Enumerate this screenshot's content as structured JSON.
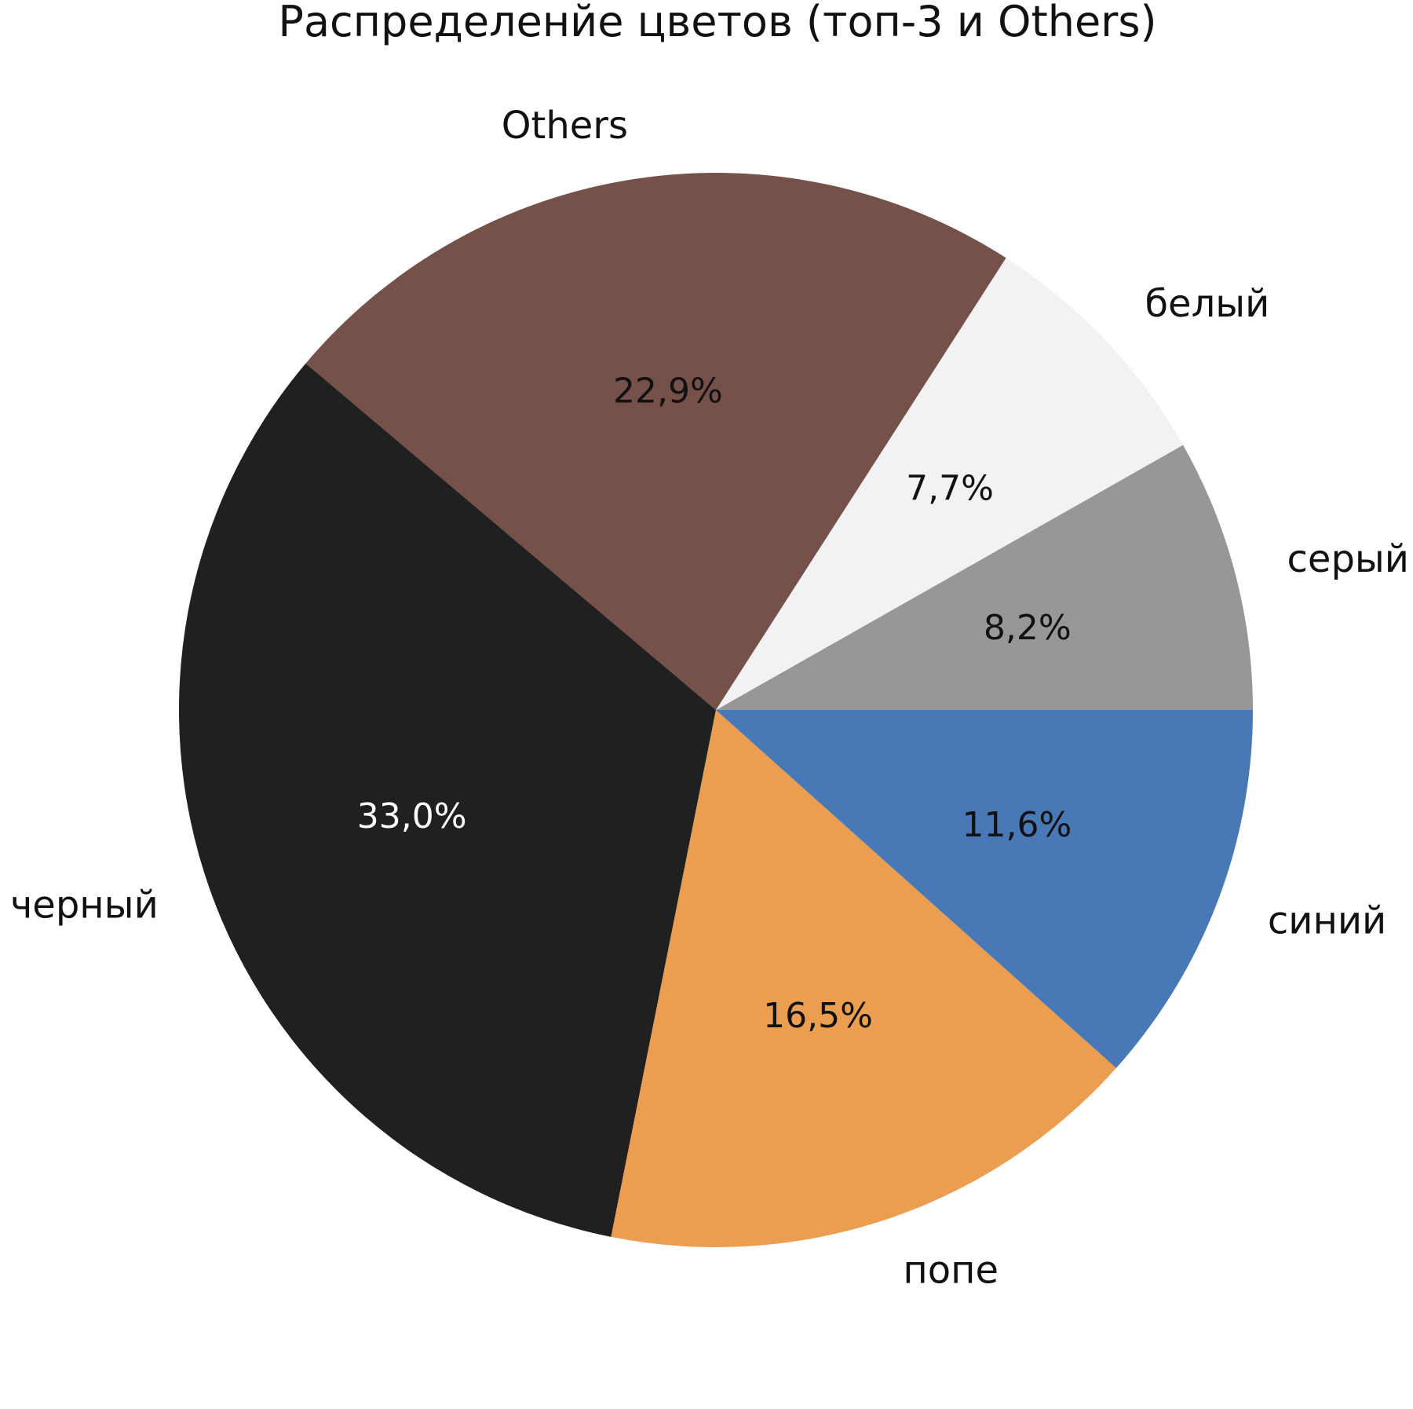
{
  "chart_data": {
    "type": "pie",
    "title": "Распределенйе цветов (топ-3 и Others)",
    "start_angle_deg": 0,
    "direction": "counterclockwise",
    "slices": [
      {
        "label": "серый",
        "value": 8.2,
        "pct_text": "8,2%",
        "color": "#979797",
        "pct_color": "#111111"
      },
      {
        "label": "белый",
        "value": 7.7,
        "pct_text": "7,7%",
        "color": "#f2f2f4",
        "pct_color": "#111111"
      },
      {
        "label": "Others",
        "value": 22.9,
        "pct_text": "22,9%",
        "color": "#75514a",
        "pct_color": "#111111"
      },
      {
        "label": "черный",
        "value": 33.0,
        "pct_text": "33,0%",
        "color": "#202020",
        "pct_color": "#ffffff"
      },
      {
        "label": "попе",
        "value": 16.5,
        "pct_text": "16,5%",
        "color": "#eb9e50",
        "pct_color": "#111111"
      },
      {
        "label": "синий",
        "value": 11.6,
        "pct_text": "11,6%",
        "color": "#4878b5",
        "pct_color": "#111111"
      }
    ]
  }
}
